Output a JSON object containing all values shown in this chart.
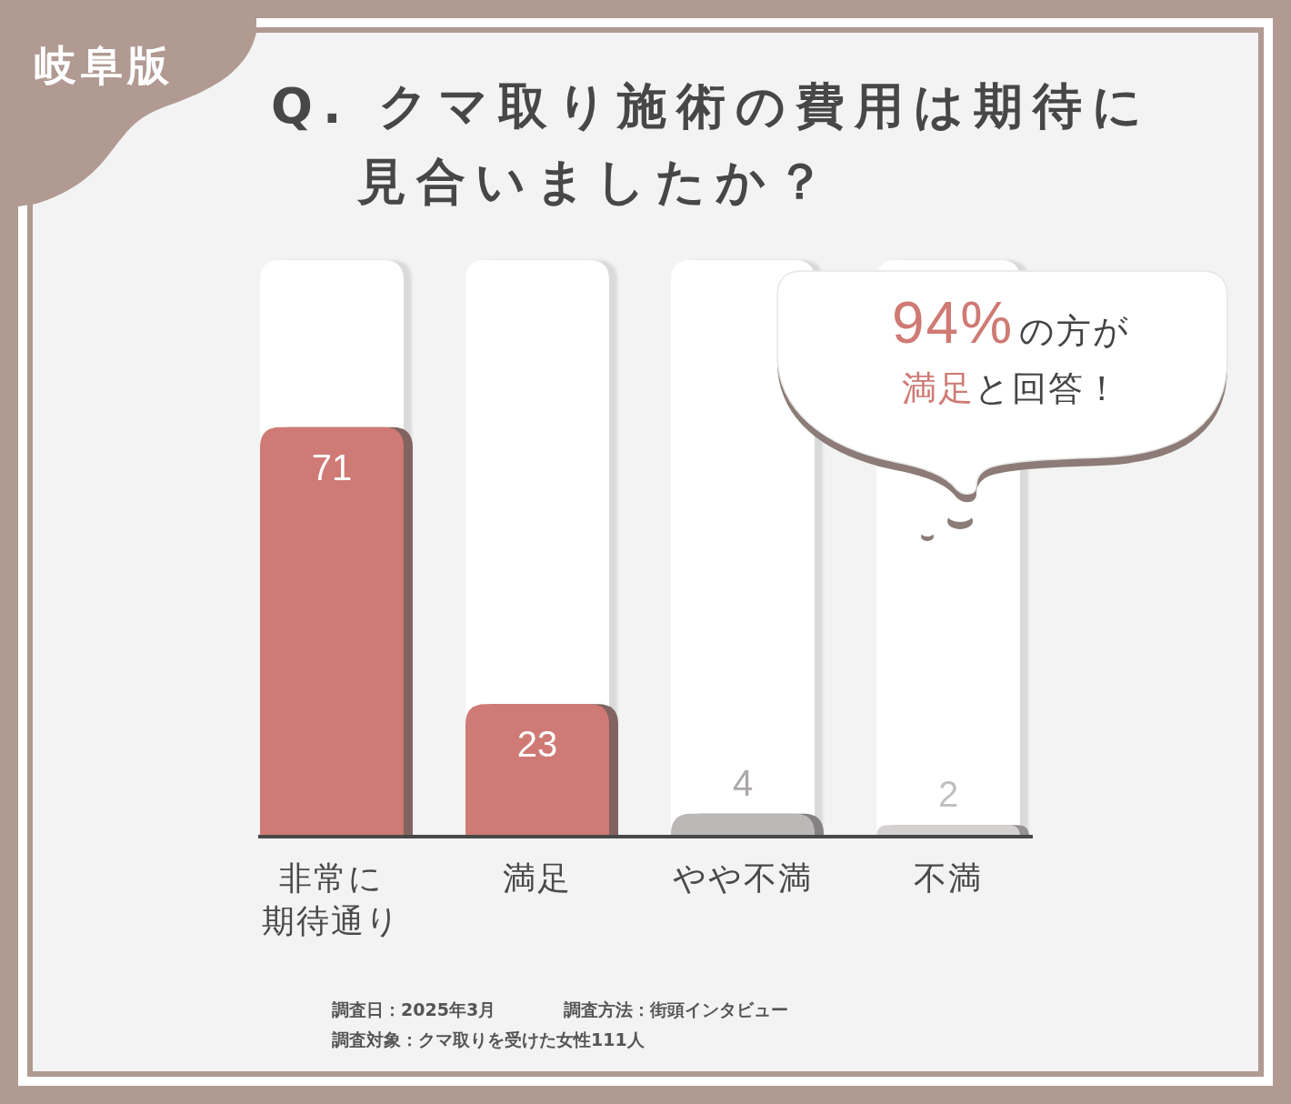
{
  "chart_data": {
    "type": "bar",
    "title": "Q. クマ取り施術の費用は期待に見合いましたか？",
    "subtitle": "岐阜版",
    "categories": [
      "非常に期待通り",
      "満足",
      "やや不満",
      "不満"
    ],
    "values": [
      71,
      23,
      4,
      2
    ],
    "colors": [
      "#cf7a74",
      "#cf7a74",
      "#bcb8b8",
      "#d4d1d1"
    ],
    "ylim": [
      0,
      100
    ],
    "data_labels": true,
    "annotations": [
      "94%の方が満足と回答！",
      "調査日：2025年3月",
      "調査方法：街頭インタビュー",
      "調査対象：クマ取りを受けた女性111人"
    ]
  }
}
